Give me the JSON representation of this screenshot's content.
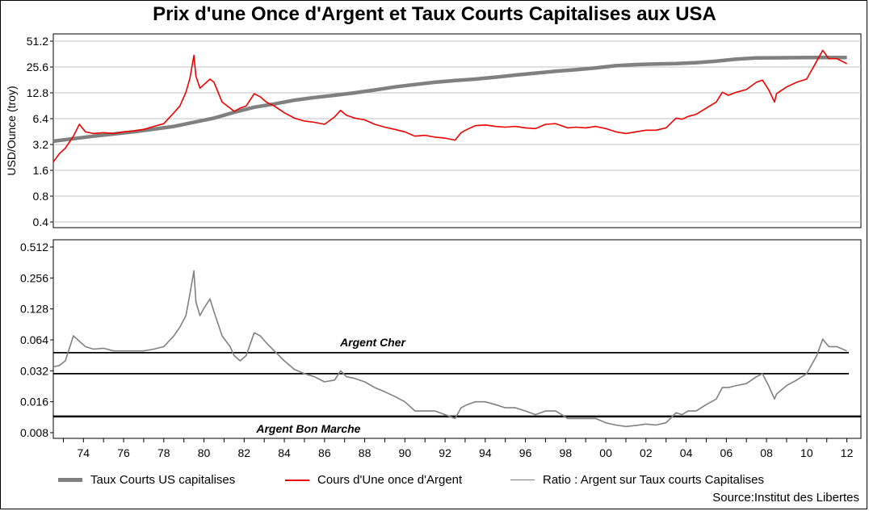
{
  "title": "Prix d'une Once d'Argent et Taux Courts Capitalises aux USA",
  "source": "Source:Institut des Libertes",
  "legend": [
    {
      "label": "Taux Courts US capitalises",
      "color": "#808080"
    },
    {
      "label": "Cours d'Une once d'Argent",
      "color": "#ee0000"
    },
    {
      "label": "Ratio : Argent sur Taux courts Capitalises",
      "color": "#808080"
    }
  ],
  "chart_data": [
    {
      "type": "line",
      "panel": "top",
      "ylabel": "USD/Ounce (troy)",
      "yscale": "log2",
      "ylim": [
        0.4,
        51.2
      ],
      "yticks": [
        "51.2",
        "25.6",
        "12.8",
        "6.4",
        "3.2",
        "1.6",
        "0.8",
        "0.4"
      ],
      "grid": true,
      "series": [
        {
          "name": "Taux Courts US capitalises",
          "color": "#808080",
          "x": [
            1973,
            1975,
            1977,
            1979,
            1981,
            1982,
            1983,
            1984,
            1985,
            1986,
            1987,
            1988,
            1989,
            1990,
            1991,
            1992,
            1993,
            1994,
            1995,
            1996,
            1997,
            1998,
            1999,
            2000,
            2001,
            2002,
            2003,
            2004,
            2005,
            2006,
            2007,
            2008,
            2009,
            2010,
            2011,
            2012.5
          ],
          "y": [
            3.5,
            4.0,
            4.5,
            5.2,
            6.5,
            7.6,
            8.7,
            9.5,
            10.5,
            11.3,
            12.0,
            12.8,
            13.8,
            15.0,
            16.0,
            17.0,
            17.8,
            18.5,
            19.5,
            20.6,
            21.7,
            22.8,
            23.8,
            25.0,
            26.5,
            27.3,
            27.8,
            28.1,
            28.8,
            30.0,
            31.6,
            32.6,
            32.8,
            32.9,
            33.0,
            33.0
          ]
        },
        {
          "name": "Cours d'Une once d'Argent",
          "color": "#ee0000",
          "x": [
            1973,
            1973.3,
            1973.6,
            1974,
            1974.3,
            1974.6,
            1975,
            1975.5,
            1976,
            1976.5,
            1977,
            1977.5,
            1978,
            1978.5,
            1979,
            1979.3,
            1979.6,
            1979.8,
            1980,
            1980.1,
            1980.3,
            1980.5,
            1980.8,
            1981,
            1981.4,
            1981.8,
            1982,
            1982.3,
            1982.6,
            1983,
            1983.3,
            1983.6,
            1984,
            1984.5,
            1985,
            1985.5,
            1986,
            1986.5,
            1987,
            1987.3,
            1987.6,
            1988,
            1988.5,
            1989,
            1989.5,
            1990,
            1990.5,
            1991,
            1991.5,
            1992,
            1992.5,
            1993,
            1993.3,
            1993.6,
            1994,
            1994.5,
            1995,
            1995.5,
            1996,
            1996.5,
            1997,
            1997.5,
            1998,
            1998.3,
            1998.6,
            1999,
            1999.5,
            2000,
            2000.5,
            2001,
            2001.5,
            2002,
            2002.5,
            2003,
            2003.5,
            2004,
            2004.3,
            2004.6,
            2005,
            2005.5,
            2006,
            2006.3,
            2006.6,
            2007,
            2007.5,
            2008,
            2008.3,
            2008.6,
            2008.9,
            2009,
            2009.5,
            2010,
            2010.5,
            2011,
            2011.3,
            2011.6,
            2012,
            2012.5
          ],
          "y": [
            2.0,
            2.5,
            2.9,
            4.0,
            5.5,
            4.5,
            4.3,
            4.4,
            4.3,
            4.5,
            4.6,
            4.8,
            5.2,
            5.6,
            7.5,
            9.0,
            13.0,
            19.0,
            35.0,
            20.0,
            14.5,
            16.0,
            18.5,
            17.0,
            10.0,
            8.5,
            7.8,
            8.5,
            9.0,
            12.5,
            11.5,
            10.0,
            9.0,
            7.5,
            6.5,
            6.0,
            5.8,
            5.5,
            6.7,
            8.0,
            7.0,
            6.5,
            6.2,
            5.5,
            5.1,
            4.8,
            4.5,
            4.0,
            4.1,
            3.9,
            3.8,
            3.6,
            4.4,
            4.8,
            5.3,
            5.4,
            5.2,
            5.1,
            5.2,
            5.0,
            4.9,
            5.5,
            5.6,
            5.3,
            5.0,
            5.1,
            5.0,
            5.2,
            4.9,
            4.5,
            4.3,
            4.5,
            4.7,
            4.7,
            5.0,
            6.5,
            6.3,
            6.8,
            7.2,
            8.5,
            10.0,
            13.0,
            12.0,
            13.0,
            14.0,
            17.0,
            18.0,
            14.0,
            10.0,
            12.5,
            15.0,
            17.0,
            18.5,
            30.0,
            40.0,
            32.0,
            32.0,
            28.0
          ]
        }
      ]
    },
    {
      "type": "line",
      "panel": "bottom",
      "yscale": "log2",
      "ylim": [
        0.008,
        0.512
      ],
      "yticks": [
        "0.512",
        "0.256",
        "0.128",
        "0.064",
        "0.032",
        "0.016",
        "0.008"
      ],
      "xticks": [
        "74",
        "76",
        "78",
        "80",
        "82",
        "84",
        "86",
        "88",
        "90",
        "92",
        "94",
        "96",
        "98",
        "00",
        "02",
        "04",
        "06",
        "08",
        "10",
        "12"
      ],
      "xlim": [
        1973,
        2013.2
      ],
      "series": [
        {
          "name": "Ratio : Argent sur Taux courts Capitalises",
          "color": "#808080",
          "x": [
            1973,
            1973.3,
            1973.6,
            1974,
            1974.3,
            1974.6,
            1975,
            1975.5,
            1976,
            1976.5,
            1977,
            1977.5,
            1978,
            1978.5,
            1979,
            1979.3,
            1979.6,
            1979.8,
            1980,
            1980.1,
            1980.3,
            1980.5,
            1980.8,
            1981,
            1981.4,
            1981.8,
            1982,
            1982.3,
            1982.6,
            1983,
            1983.3,
            1983.6,
            1984,
            1984.5,
            1985,
            1985.5,
            1986,
            1986.5,
            1987,
            1987.3,
            1987.6,
            1988,
            1988.5,
            1989,
            1989.5,
            1990,
            1990.5,
            1991,
            1991.5,
            1992,
            1992.5,
            1993,
            1993.3,
            1993.6,
            1994,
            1994.5,
            1995,
            1995.5,
            1996,
            1996.5,
            1997,
            1997.5,
            1998,
            1998.3,
            1998.6,
            1999,
            1999.5,
            2000,
            2000.5,
            2001,
            2001.5,
            2002,
            2002.5,
            2003,
            2003.5,
            2004,
            2004.3,
            2004.6,
            2005,
            2005.5,
            2006,
            2006.3,
            2006.6,
            2007,
            2007.5,
            2008,
            2008.3,
            2008.6,
            2008.9,
            2009,
            2009.5,
            2010,
            2010.5,
            2011,
            2011.3,
            2011.6,
            2012,
            2012.5
          ],
          "y": [
            0.035,
            0.036,
            0.04,
            0.07,
            0.062,
            0.055,
            0.052,
            0.053,
            0.05,
            0.05,
            0.05,
            0.05,
            0.052,
            0.055,
            0.07,
            0.085,
            0.11,
            0.18,
            0.3,
            0.15,
            0.11,
            0.13,
            0.16,
            0.12,
            0.07,
            0.055,
            0.045,
            0.04,
            0.045,
            0.075,
            0.07,
            0.06,
            0.05,
            0.04,
            0.033,
            0.03,
            0.028,
            0.025,
            0.026,
            0.032,
            0.028,
            0.027,
            0.025,
            0.022,
            0.02,
            0.018,
            0.016,
            0.013,
            0.013,
            0.013,
            0.012,
            0.011,
            0.014,
            0.015,
            0.016,
            0.016,
            0.015,
            0.014,
            0.014,
            0.013,
            0.012,
            0.013,
            0.013,
            0.012,
            0.011,
            0.011,
            0.011,
            0.011,
            0.01,
            0.0095,
            0.0092,
            0.0094,
            0.0097,
            0.0095,
            0.01,
            0.0125,
            0.012,
            0.013,
            0.013,
            0.015,
            0.017,
            0.022,
            0.022,
            0.023,
            0.024,
            0.028,
            0.03,
            0.023,
            0.017,
            0.019,
            0.023,
            0.026,
            0.03,
            0.045,
            0.065,
            0.055,
            0.055,
            0.05
          ]
        }
      ],
      "reference_lines": [
        {
          "label": "Argent Cher",
          "y": 0.048
        },
        {
          "label": "",
          "y": 0.03
        },
        {
          "label": "Argent Bon Marche",
          "y": 0.0115
        }
      ]
    }
  ]
}
